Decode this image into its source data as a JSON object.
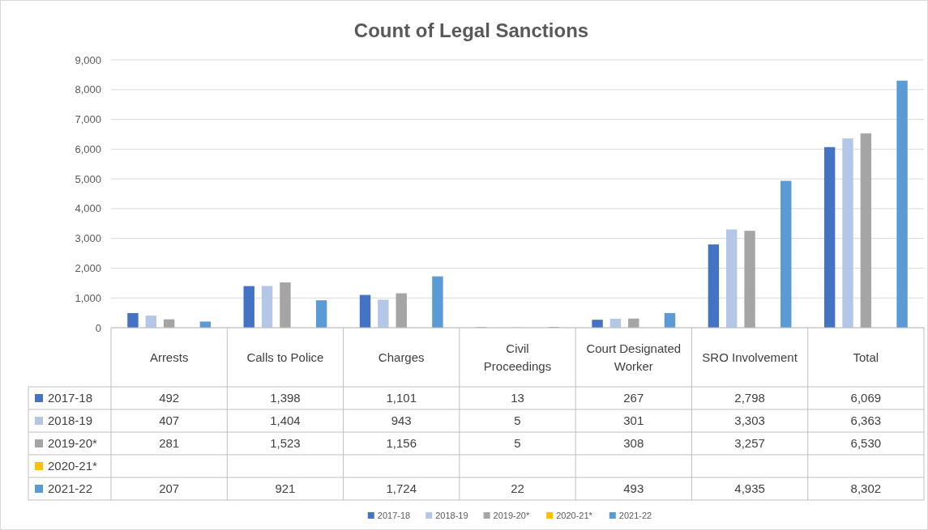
{
  "chart_data": {
    "type": "bar",
    "title": "Count of Legal Sanctions",
    "categories": [
      "Arrests",
      "Calls to Police",
      "Charges",
      "Civil Proceedings",
      "Court Designated Worker",
      "SRO Involvement",
      "Total"
    ],
    "series": [
      {
        "name": "2017-18",
        "color": "#4472c4",
        "values": [
          492,
          1398,
          1101,
          13,
          267,
          2798,
          6069
        ],
        "value_labels": [
          "492",
          "1,398",
          "1,101",
          "13",
          "267",
          "2,798",
          "6,069"
        ]
      },
      {
        "name": "2018-19",
        "color": "#b4c7e7",
        "values": [
          407,
          1404,
          943,
          5,
          301,
          3303,
          6363
        ],
        "value_labels": [
          "407",
          "1,404",
          "943",
          "5",
          "301",
          "3,303",
          "6,363"
        ]
      },
      {
        "name": "2019-20*",
        "color": "#a5a5a5",
        "values": [
          281,
          1523,
          1156,
          5,
          308,
          3257,
          6530
        ],
        "value_labels": [
          "281",
          "1,523",
          "1,156",
          "5",
          "308",
          "3,257",
          "6,530"
        ]
      },
      {
        "name": "2020-21*",
        "color": "#ffc000",
        "values": [
          null,
          null,
          null,
          null,
          null,
          null,
          null
        ]
      },
      {
        "name": "2021-22",
        "color": "#5b9bd5",
        "values": [
          207,
          921,
          1724,
          22,
          493,
          4935,
          8302
        ],
        "value_labels": [
          "207",
          "921",
          "1,724",
          "22",
          "493",
          "4,935",
          "8,302"
        ]
      }
    ],
    "ylim": [
      0,
      9000
    ],
    "yticks": [
      {
        "value": 0,
        "label": "0"
      },
      {
        "value": 1000,
        "label": "1,000"
      },
      {
        "value": 2000,
        "label": "2,000"
      },
      {
        "value": 3000,
        "label": "3,000"
      },
      {
        "value": 4000,
        "label": "4,000"
      },
      {
        "value": 5000,
        "label": "5,000"
      },
      {
        "value": 6000,
        "label": "6,000"
      },
      {
        "value": 7000,
        "label": "7,000"
      },
      {
        "value": 8000,
        "label": "8,000"
      },
      {
        "value": 9000,
        "label": "9,000"
      }
    ],
    "grid": "y",
    "legend": "bottom"
  }
}
